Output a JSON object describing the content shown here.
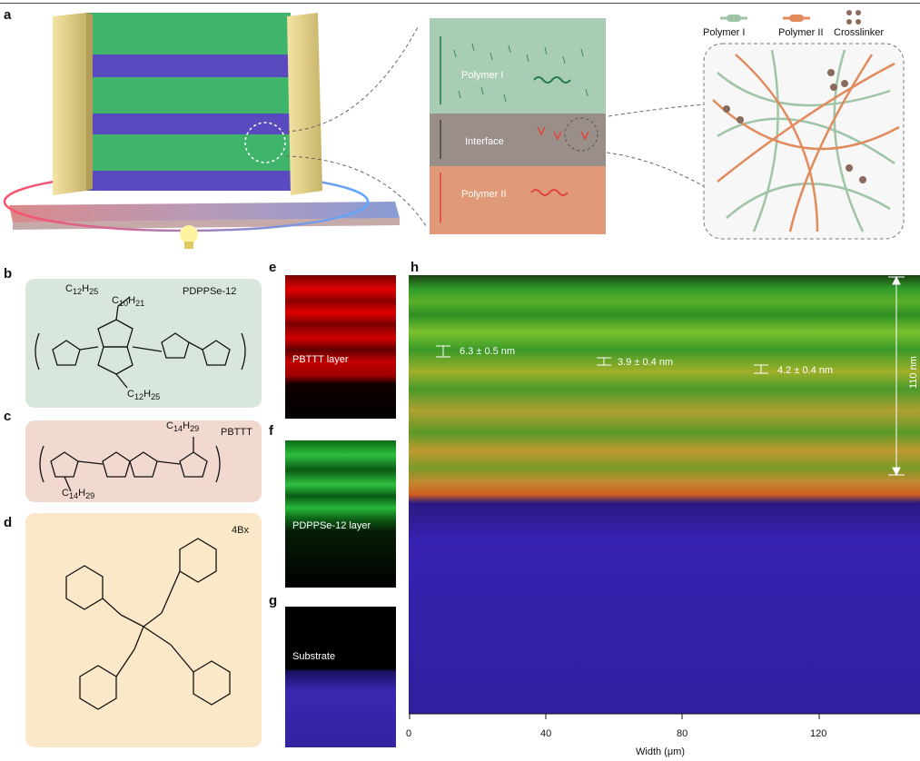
{
  "panels": {
    "a": {
      "label": "a",
      "interface_labels": [
        "Polymer I",
        "Interface",
        "Polymer II"
      ],
      "legend": [
        "Polymer I",
        "Polymer II",
        "Crosslinker"
      ]
    },
    "b": {
      "label": "b",
      "name": "PDPPSe-12"
    },
    "c": {
      "label": "c",
      "name": "PBTTT"
    },
    "d": {
      "label": "d",
      "name": "4Bx"
    },
    "e": {
      "label": "e",
      "caption": "PBTTT layer"
    },
    "f": {
      "label": "f",
      "caption": "PDPPSe-12 layer"
    },
    "g": {
      "label": "g",
      "caption": "Substrate"
    },
    "h": {
      "label": "h",
      "annotations": [
        "6.3 ± 0.5 nm",
        "3.9 ± 0.4 nm",
        "4.2 ± 0.4 nm"
      ],
      "scale": "110 nm",
      "xlabel": "Width (μm)",
      "xticks": [
        "0",
        "40",
        "80",
        "120"
      ]
    }
  },
  "colors": {
    "polymer1": "#9fc4a6",
    "polymer2": "#e18a5c",
    "crosslinker": "#8a6a5c",
    "bg_b": "#d9e6dc",
    "bg_c": "#f2d9cf",
    "bg_d": "#fbe8c8"
  }
}
